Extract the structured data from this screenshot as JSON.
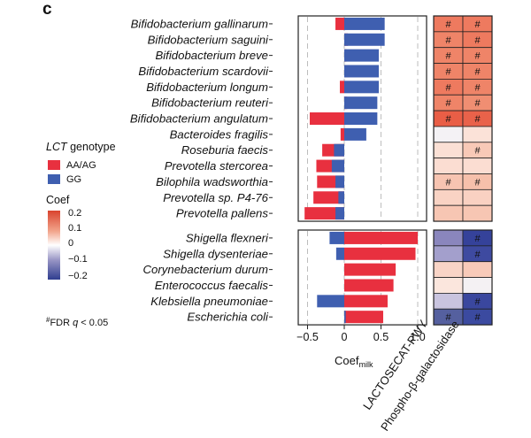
{
  "panel_label": "c",
  "legend": {
    "genotype_title": "LCT genotype",
    "genotype_title_italic": "LCT",
    "genotype_title_rest": " genotype",
    "genotype_items": [
      {
        "label": "AA/AG",
        "color": "#e8303f"
      },
      {
        "label": "GG",
        "color": "#3f5fb0"
      }
    ],
    "coef_title": "Coef",
    "coef_ticks": [
      "0.2",
      "0.1",
      "0",
      "−0.1",
      "−0.2"
    ],
    "coef_colors": {
      "high": "#d9432e",
      "mid": "#ffffff",
      "low": "#2f3d8f"
    },
    "footnote_mark": "#",
    "footnote_text": "FDR ",
    "footnote_q": "q",
    "footnote_rest": " < 0.05"
  },
  "chart_data": {
    "type": "bar",
    "orientation": "horizontal",
    "xlabel": "Coef",
    "xlabel_subscript": "milk",
    "xlim": [
      -0.55,
      1.05
    ],
    "xticks": [
      "−0.5",
      "0",
      "0.5",
      "1.0"
    ],
    "xtick_values": [
      -0.5,
      0,
      0.5,
      1.0
    ],
    "series_names": [
      "AA/AG",
      "GG"
    ],
    "groups": [
      {
        "taxa": [
          {
            "name": "Bifidobacterium gallinarum",
            "aa": -0.12,
            "gg": 0.55
          },
          {
            "name": "Bifidobacterium saguini",
            "aa": 0.05,
            "gg": 0.55
          },
          {
            "name": "Bifidobacterium breve",
            "aa": 0.03,
            "gg": 0.47
          },
          {
            "name": "Bifidobacterium scardovii",
            "aa": 0.07,
            "gg": 0.47
          },
          {
            "name": "Bifidobacterium longum",
            "aa": -0.06,
            "gg": 0.47
          },
          {
            "name": "Bifidobacterium reuteri",
            "aa": 0.04,
            "gg": 0.45
          },
          {
            "name": "Bifidobacterium angulatum",
            "aa": -0.47,
            "gg": 0.45
          },
          {
            "name": "Bacteroides fragilis",
            "aa": -0.05,
            "gg": 0.3
          },
          {
            "name": "Roseburia faecis",
            "aa": -0.3,
            "gg": -0.14
          },
          {
            "name": "Prevotella stercorea",
            "aa": -0.38,
            "gg": -0.17
          },
          {
            "name": "Bilophila wadsworthia",
            "aa": -0.37,
            "gg": -0.12
          },
          {
            "name": "Prevotella sp. P4-76",
            "aa": -0.42,
            "gg": -0.08
          },
          {
            "name": "Prevotella pallens",
            "aa": -0.54,
            "gg": -0.12
          }
        ],
        "heatmap": [
          [
            "#ee7a5f",
            "#ee7a5f"
          ],
          [
            "#ef8468",
            "#ee7a5f"
          ],
          [
            "#ef8468",
            "#ef8468"
          ],
          [
            "#ef8468",
            "#ef8468"
          ],
          [
            "#ee7a5f",
            "#ef8468"
          ],
          [
            "#ef8468",
            "#f08e72"
          ],
          [
            "#e95e46",
            "#e9624a"
          ],
          [
            "#f4f2f5",
            "#fbe2d8"
          ],
          [
            "#fbe0d5",
            "#f8c9b7"
          ],
          [
            "#fbddd2",
            "#fbddd2"
          ],
          [
            "#f7c4b1",
            "#f6c0ab"
          ],
          [
            "#f9d3c4",
            "#f9d1c2"
          ],
          [
            "#f7c6b3",
            "#f7c6b3"
          ]
        ],
        "significant": [
          [
            true,
            true
          ],
          [
            true,
            true
          ],
          [
            true,
            true
          ],
          [
            true,
            true
          ],
          [
            true,
            true
          ],
          [
            true,
            true
          ],
          [
            true,
            true
          ],
          [
            false,
            false
          ],
          [
            false,
            true
          ],
          [
            false,
            false
          ],
          [
            true,
            true
          ],
          [
            false,
            false
          ],
          [
            false,
            false
          ]
        ]
      },
      {
        "taxa": [
          {
            "name": "Shigella flexneri",
            "aa": 1.0,
            "gg": -0.2
          },
          {
            "name": "Shigella dysenteriae",
            "aa": 0.97,
            "gg": -0.11
          },
          {
            "name": "Corynebacterium durum",
            "aa": 0.7,
            "gg": 0.0
          },
          {
            "name": "Enterococcus faecalis",
            "aa": 0.67,
            "gg": 0.0
          },
          {
            "name": "Klebsiella pneumoniae",
            "aa": 0.59,
            "gg": -0.37
          },
          {
            "name": "Escherichia coli",
            "aa": 0.53,
            "gg": 0.02
          }
        ],
        "heatmap": [
          [
            "#8a86bd",
            "#35429a"
          ],
          [
            "#a39fcc",
            "#3e4aa0"
          ],
          [
            "#f9d4c6",
            "#f8cab9"
          ],
          [
            "#fbe6dd",
            "#f4f1f3"
          ],
          [
            "#c9c4df",
            "#3a479e"
          ],
          [
            "#55609f",
            "#3b4aa0"
          ]
        ],
        "significant": [
          [
            false,
            true
          ],
          [
            false,
            true
          ],
          [
            false,
            false
          ],
          [
            false,
            false
          ],
          [
            false,
            true
          ],
          [
            true,
            true
          ]
        ]
      }
    ],
    "heatmap_columns": [
      "LACTOSECAT-PWY",
      "Phospho-β-galactosidase"
    ]
  }
}
